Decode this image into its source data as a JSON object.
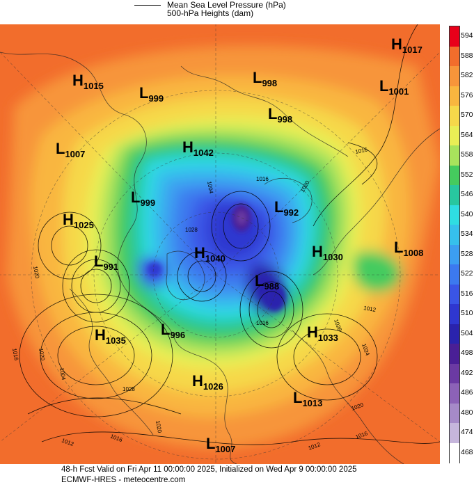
{
  "legend": {
    "mslp": "Mean Sea Level Pressure (hPa)",
    "heights": "500-hPa Heights (dam)"
  },
  "colorbar": {
    "levels": [
      "594",
      "588",
      "582",
      "576",
      "570",
      "564",
      "558",
      "552",
      "546",
      "540",
      "534",
      "528",
      "522",
      "516",
      "510",
      "504",
      "498",
      "492",
      "486",
      "480",
      "474",
      "468"
    ],
    "colors": [
      "#e8001a",
      "#f26d2c",
      "#f7953a",
      "#f9b63f",
      "#f6d84a",
      "#e9ee55",
      "#a8e35c",
      "#45cb5e",
      "#28c79f",
      "#2fdde2",
      "#36c0ec",
      "#3c9ef1",
      "#3c79ef",
      "#3a55e6",
      "#2f37d0",
      "#2a23ad",
      "#4a1f96",
      "#6b3aa3",
      "#8c62b7",
      "#a68ac8",
      "#c6b6dc",
      "#ffffff"
    ]
  },
  "systems": [
    {
      "type": "H",
      "value": "1017"
    },
    {
      "type": "H",
      "value": "1015"
    },
    {
      "type": "L",
      "value": "999"
    },
    {
      "type": "L",
      "value": "998"
    },
    {
      "type": "L",
      "value": "1001"
    },
    {
      "type": "L",
      "value": "998"
    },
    {
      "type": "L",
      "value": "1007"
    },
    {
      "type": "H",
      "value": "1042"
    },
    {
      "type": "L",
      "value": "999"
    },
    {
      "type": "H",
      "value": "1025"
    },
    {
      "type": "L",
      "value": "992"
    },
    {
      "type": "L",
      "value": "991"
    },
    {
      "type": "H",
      "value": "1040"
    },
    {
      "type": "H",
      "value": "1030"
    },
    {
      "type": "L",
      "value": "1008"
    },
    {
      "type": "L",
      "value": "988"
    },
    {
      "type": "H",
      "value": "1035"
    },
    {
      "type": "L",
      "value": "996"
    },
    {
      "type": "H",
      "value": "1033"
    },
    {
      "type": "H",
      "value": "1026"
    },
    {
      "type": "L",
      "value": "1013"
    },
    {
      "type": "L",
      "value": "1007"
    }
  ],
  "isobar_labels": [
    "1016",
    "1016",
    "1004",
    "1020",
    "1028",
    "1020",
    "1020",
    "1028",
    "1024",
    "1020",
    "1016",
    "1012",
    "1016",
    "1012",
    "1016",
    "1012",
    "1016",
    "1028",
    "1020",
    "1004"
  ],
  "footer": {
    "line1": "48-h Fcst Valid on Fri Apr 11 00:00:00 2025, Initialized on Wed Apr  9 00:00:00 2025",
    "line2": "ECMWF-HRES  - meteocentre.com"
  }
}
